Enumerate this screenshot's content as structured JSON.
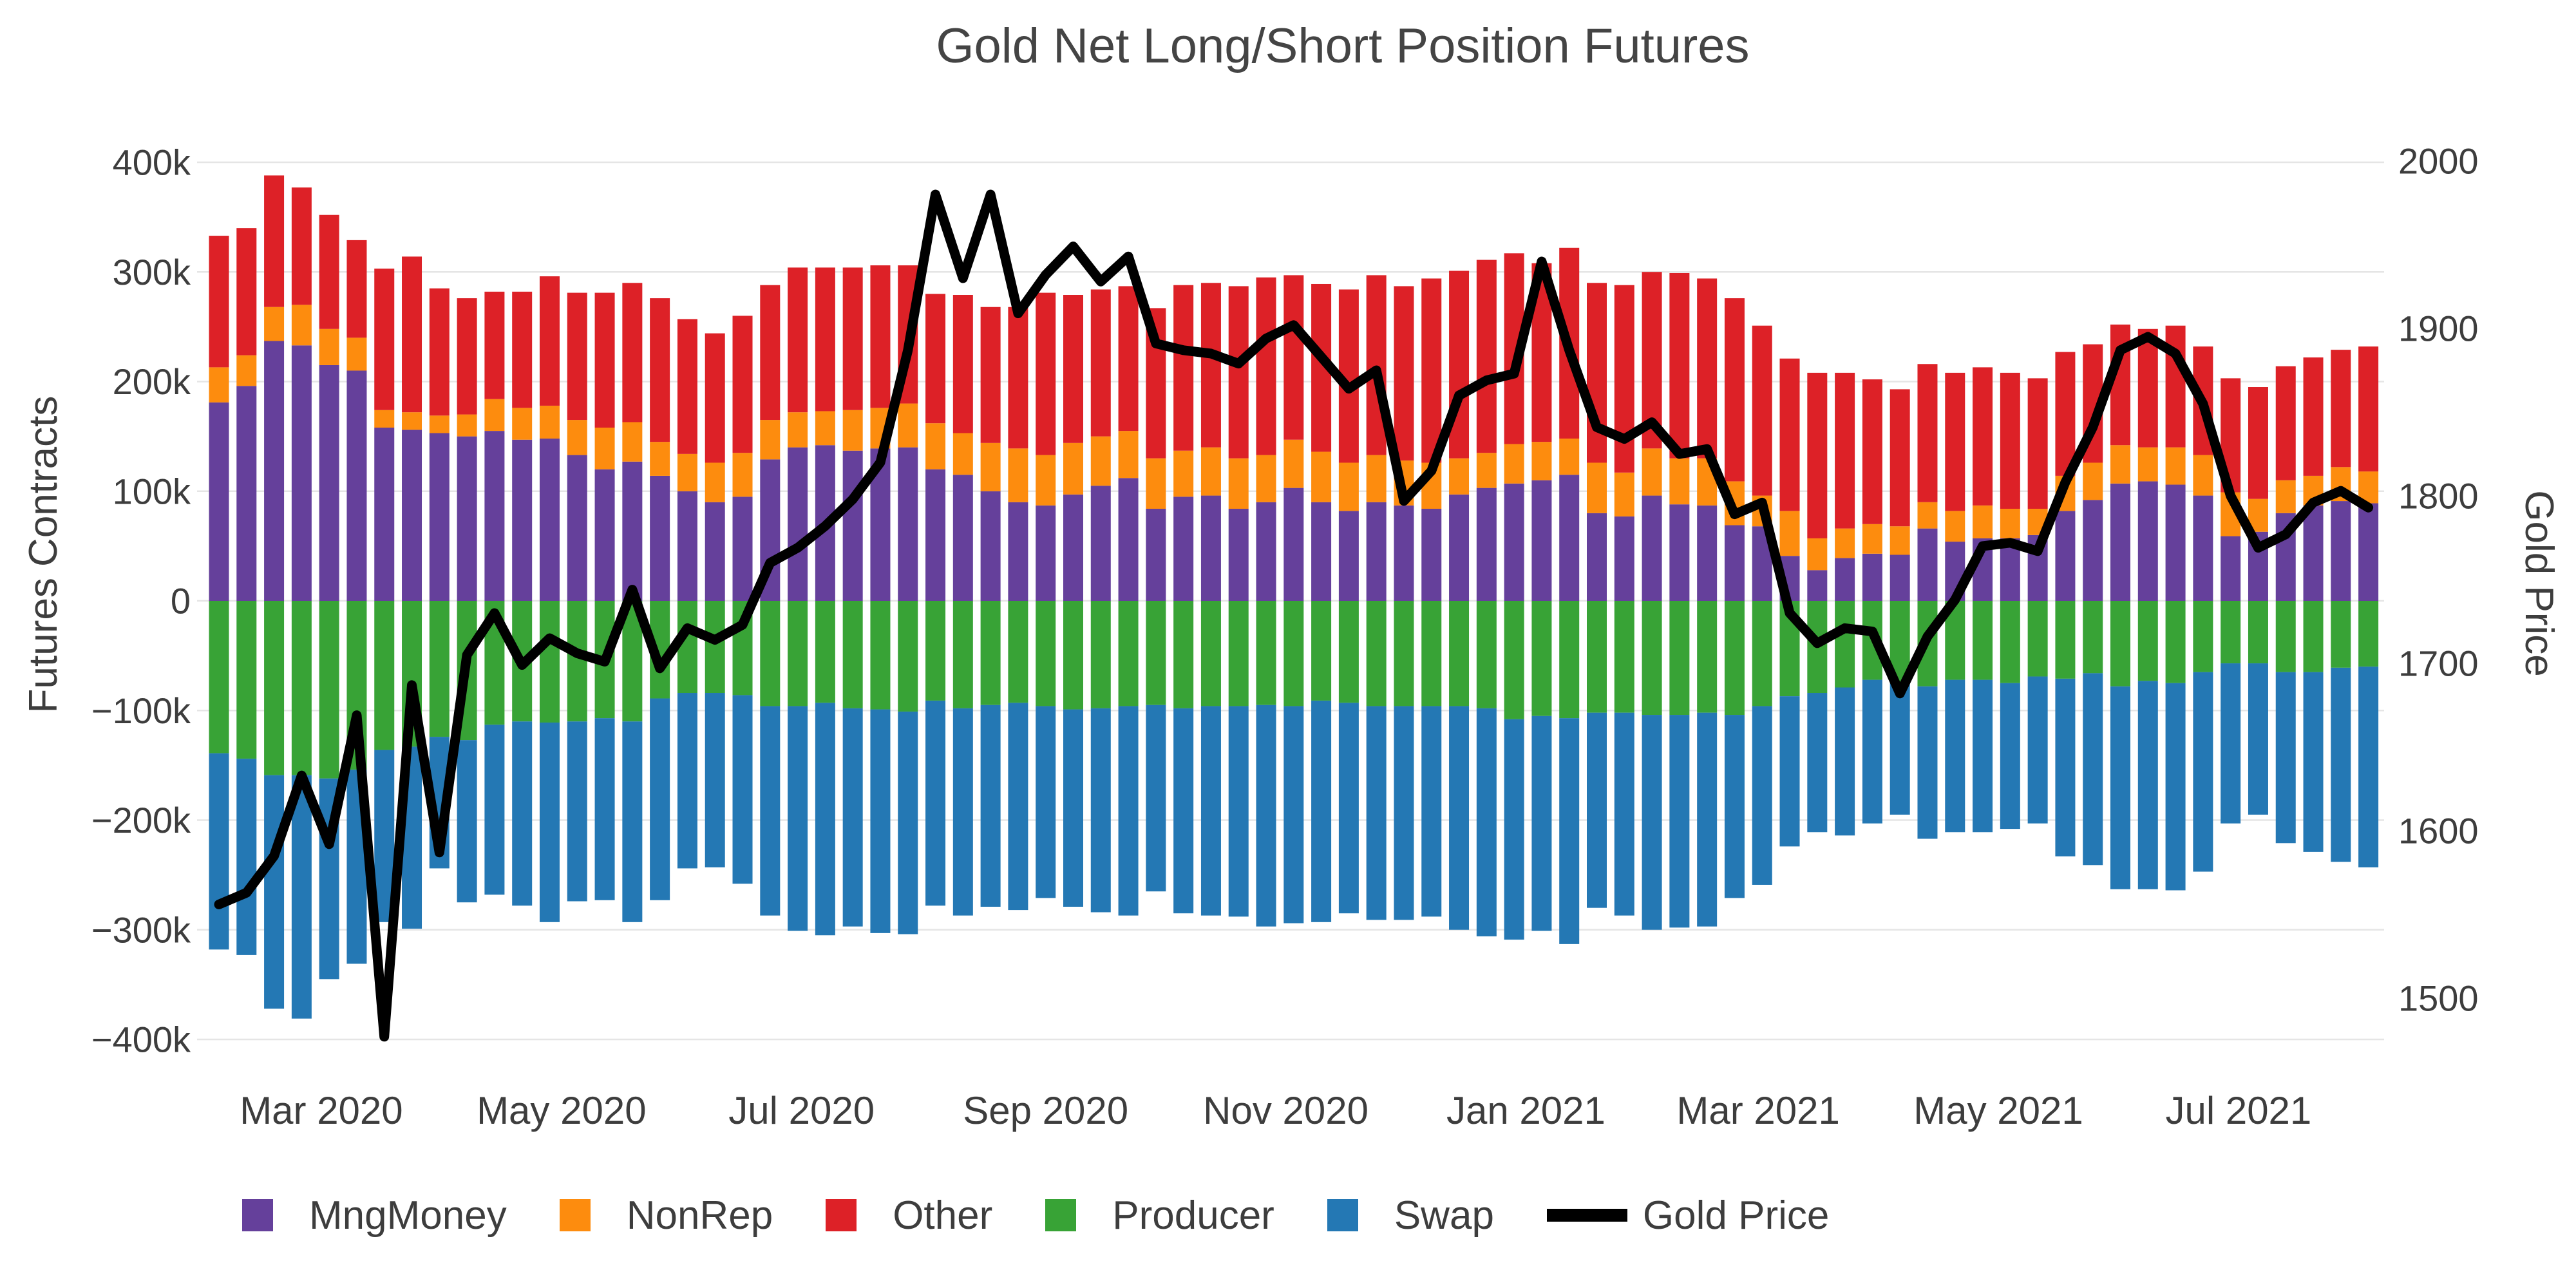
{
  "title": "Gold Net Long/Short Position Futures",
  "axes": {
    "left": {
      "title": "Futures Contracts",
      "tick_labels": [
        "400k",
        "300k",
        "200k",
        "100k",
        "0",
        "−100k",
        "−200k",
        "−300k",
        "−400k"
      ],
      "tick_values": [
        400,
        300,
        200,
        100,
        0,
        -100,
        -200,
        -300,
        -400
      ],
      "range_thousands": [
        -400,
        400
      ]
    },
    "right": {
      "title": "Gold Price",
      "tick_labels": [
        "2000",
        "1900",
        "1800",
        "1700",
        "1600",
        "1500"
      ],
      "tick_values": [
        2000,
        1900,
        1800,
        1700,
        1600,
        1500
      ],
      "range": [
        1475,
        2000
      ]
    }
  },
  "legend": {
    "items": [
      {
        "label": "MngMoney",
        "color": "#65409b",
        "marker": "square"
      },
      {
        "label": "NonRep",
        "color": "#fd8c0e",
        "marker": "square"
      },
      {
        "label": "Other",
        "color": "#dd2127",
        "marker": "square"
      },
      {
        "label": "Producer",
        "color": "#38a336",
        "marker": "square"
      },
      {
        "label": "Swap",
        "color": "#2478b4",
        "marker": "square"
      },
      {
        "label": "Gold Price",
        "color": "#000000",
        "marker": "line"
      }
    ]
  },
  "style": {
    "grid_color": "#e5e5e5",
    "text_color": "#3d3d3d",
    "background": "#ffffff",
    "line_width": 15
  },
  "chart_data": {
    "type": "bar",
    "subtype": "stacked bars (weekly futures positions, thousands of contracts) + line (gold price, right axis)",
    "x_dates": [
      "2020-02-04",
      "2020-02-11",
      "2020-02-18",
      "2020-02-25",
      "2020-03-03",
      "2020-03-10",
      "2020-03-17",
      "2020-03-24",
      "2020-03-31",
      "2020-04-07",
      "2020-04-14",
      "2020-04-21",
      "2020-04-28",
      "2020-05-05",
      "2020-05-12",
      "2020-05-19",
      "2020-05-26",
      "2020-06-02",
      "2020-06-09",
      "2020-06-16",
      "2020-06-23",
      "2020-06-30",
      "2020-07-07",
      "2020-07-14",
      "2020-07-21",
      "2020-07-28",
      "2020-08-04",
      "2020-08-11",
      "2020-08-18",
      "2020-08-25",
      "2020-09-01",
      "2020-09-08",
      "2020-09-15",
      "2020-09-22",
      "2020-09-29",
      "2020-10-06",
      "2020-10-13",
      "2020-10-20",
      "2020-10-27",
      "2020-11-03",
      "2020-11-10",
      "2020-11-17",
      "2020-11-24",
      "2020-12-01",
      "2020-12-08",
      "2020-12-15",
      "2020-12-22",
      "2020-12-29",
      "2021-01-05",
      "2021-01-12",
      "2021-01-19",
      "2021-01-26",
      "2021-02-02",
      "2021-02-09",
      "2021-02-16",
      "2021-02-23",
      "2021-03-02",
      "2021-03-09",
      "2021-03-16",
      "2021-03-23",
      "2021-03-30",
      "2021-04-06",
      "2021-04-13",
      "2021-04-20",
      "2021-04-27",
      "2021-05-04",
      "2021-05-11",
      "2021-05-18",
      "2021-05-25",
      "2021-06-01",
      "2021-06-08",
      "2021-06-15",
      "2021-06-22",
      "2021-06-29",
      "2021-07-06",
      "2021-07-13",
      "2021-07-20",
      "2021-07-27",
      "2021-08-03"
    ],
    "units": "bar values in thousands of futures contracts; line in USD per oz",
    "series": [
      {
        "name": "MngMoney",
        "color": "#65409b",
        "stack": "positive",
        "values": [
          181,
          196,
          237,
          233,
          215,
          210,
          158,
          156,
          153,
          150,
          155,
          147,
          148,
          133,
          120,
          127,
          114,
          100,
          90,
          95,
          129,
          140,
          142,
          137,
          139,
          140,
          120,
          115,
          100,
          90,
          87,
          97,
          105,
          112,
          84,
          95,
          96,
          84,
          90,
          103,
          90,
          82,
          90,
          87,
          84,
          97,
          103,
          107,
          110,
          115,
          80,
          77,
          96,
          88,
          87,
          69,
          68,
          41,
          28,
          39,
          43,
          42,
          66,
          54,
          57,
          57,
          60,
          82,
          92,
          107,
          109,
          106,
          96,
          59,
          63,
          80,
          87,
          91,
          89
        ]
      },
      {
        "name": "NonRep",
        "color": "#fd8c0e",
        "stack": "positive",
        "values": [
          32,
          28,
          31,
          37,
          33,
          30,
          16,
          16,
          16,
          20,
          29,
          29,
          30,
          32,
          38,
          36,
          31,
          34,
          36,
          40,
          36,
          32,
          31,
          37,
          37,
          40,
          42,
          38,
          44,
          49,
          46,
          47,
          45,
          43,
          46,
          42,
          44,
          46,
          43,
          44,
          46,
          44,
          43,
          41,
          42,
          33,
          32,
          36,
          35,
          33,
          46,
          40,
          43,
          42,
          43,
          40,
          28,
          41,
          29,
          27,
          27,
          26,
          24,
          28,
          30,
          27,
          24,
          32,
          34,
          35,
          31,
          34,
          37,
          40,
          30,
          30,
          27,
          31,
          29
        ]
      },
      {
        "name": "Other",
        "color": "#dd2127",
        "stack": "positive",
        "values": [
          120,
          116,
          120,
          107,
          104,
          89,
          129,
          142,
          116,
          106,
          98,
          106,
          118,
          116,
          123,
          127,
          131,
          123,
          118,
          125,
          123,
          132,
          131,
          130,
          130,
          126,
          118,
          126,
          124,
          129,
          148,
          135,
          134,
          132,
          137,
          151,
          150,
          157,
          162,
          150,
          153,
          158,
          164,
          159,
          168,
          171,
          176,
          174,
          163,
          174,
          164,
          171,
          161,
          169,
          164,
          167,
          155,
          139,
          151,
          142,
          132,
          125,
          126,
          126,
          126,
          124,
          119,
          113,
          108,
          110,
          108,
          111,
          99,
          104,
          102,
          104,
          108,
          107,
          114
        ]
      },
      {
        "name": "Producer",
        "color": "#38a336",
        "stack": "negative",
        "values": [
          -139,
          -144,
          -159,
          -159,
          -162,
          -154,
          -136,
          -133,
          -124,
          -127,
          -113,
          -110,
          -111,
          -110,
          -107,
          -110,
          -89,
          -84,
          -84,
          -86,
          -96,
          -96,
          -93,
          -98,
          -99,
          -101,
          -91,
          -98,
          -95,
          -93,
          -96,
          -99,
          -98,
          -96,
          -95,
          -98,
          -96,
          -96,
          -95,
          -96,
          -91,
          -93,
          -96,
          -96,
          -96,
          -96,
          -98,
          -108,
          -105,
          -107,
          -102,
          -102,
          -104,
          -104,
          -102,
          -104,
          -96,
          -87,
          -84,
          -79,
          -72,
          -75,
          -78,
          -72,
          -72,
          -75,
          -69,
          -71,
          -66,
          -78,
          -73,
          -75,
          -65,
          -57,
          -57,
          -65,
          -65,
          -61,
          -60
        ]
      },
      {
        "name": "Swap",
        "color": "#2478b4",
        "stack": "negative",
        "values": [
          -179,
          -179,
          -213,
          -222,
          -183,
          -177,
          -157,
          -166,
          -120,
          -148,
          -155,
          -168,
          -182,
          -164,
          -166,
          -183,
          -184,
          -160,
          -159,
          -172,
          -191,
          -205,
          -212,
          -199,
          -204,
          -203,
          -187,
          -189,
          -184,
          -189,
          -175,
          -180,
          -186,
          -191,
          -170,
          -187,
          -191,
          -192,
          -202,
          -198,
          -202,
          -192,
          -195,
          -195,
          -192,
          -204,
          -208,
          -201,
          -196,
          -206,
          -178,
          -185,
          -196,
          -194,
          -195,
          -167,
          -163,
          -137,
          -127,
          -135,
          -131,
          -120,
          -139,
          -139,
          -139,
          -133,
          -134,
          -162,
          -175,
          -185,
          -190,
          -189,
          -182,
          -146,
          -138,
          -156,
          -164,
          -177,
          -183
        ]
      }
    ],
    "line_series": {
      "name": "Gold Price",
      "color": "#000000",
      "axis": "right",
      "values": [
        1556,
        1563,
        1585,
        1633,
        1592,
        1669,
        1477,
        1687,
        1587,
        1705,
        1730,
        1699,
        1715,
        1706,
        1701,
        1744,
        1697,
        1721,
        1714,
        1723,
        1760,
        1769,
        1782,
        1798,
        1820,
        1887,
        1980,
        1930,
        1980,
        1909,
        1932,
        1949,
        1928,
        1943,
        1891,
        1887,
        1885,
        1879,
        1894,
        1902,
        1883,
        1864,
        1875,
        1797,
        1815,
        1860,
        1869,
        1873,
        1940,
        1887,
        1841,
        1834,
        1844,
        1825,
        1828,
        1789,
        1796,
        1730,
        1712,
        1721,
        1719,
        1682,
        1716,
        1738,
        1770,
        1772,
        1767,
        1808,
        1841,
        1887,
        1895,
        1885,
        1855,
        1800,
        1769,
        1777,
        1796,
        1803,
        1793
      ]
    },
    "x_ticks": {
      "dates": [
        "2020-03-01",
        "2020-05-01",
        "2020-07-01",
        "2020-09-01",
        "2020-11-01",
        "2021-01-01",
        "2021-03-01",
        "2021-05-01",
        "2021-07-01"
      ],
      "labels": [
        "Mar 2020",
        "May 2020",
        "Jul 2020",
        "Sep 2020",
        "Nov 2020",
        "Jan 2021",
        "Mar 2021",
        "May 2021",
        "Jul 2021"
      ]
    },
    "legend_position": "bottom",
    "grid": "horizontal only"
  }
}
